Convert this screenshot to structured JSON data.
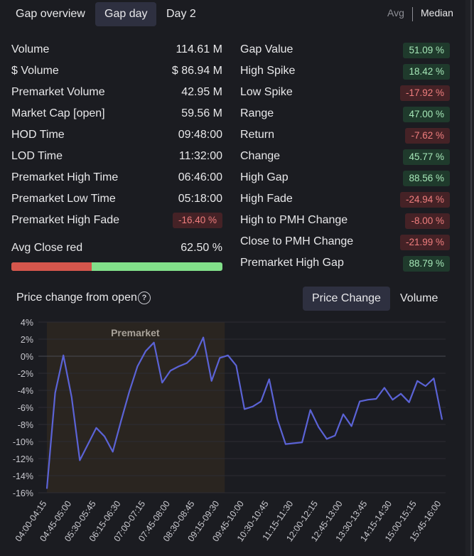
{
  "tabs": [
    "Gap overview",
    "Gap day",
    "Day 2"
  ],
  "active_tab": "Gap day",
  "toggle": {
    "avg": "Avg",
    "median": "Median"
  },
  "left_stats": [
    {
      "label": "Volume",
      "value": "114.61 M"
    },
    {
      "label": "$ Volume",
      "value": "$ 86.94 M"
    },
    {
      "label": "Premarket Volume",
      "value": "42.95 M"
    },
    {
      "label": "Market Cap [open]",
      "value": "59.56 M"
    },
    {
      "label": "HOD Time",
      "value": "09:48:00"
    },
    {
      "label": "LOD Time",
      "value": "11:32:00"
    },
    {
      "label": "Premarket High Time",
      "value": "06:46:00"
    },
    {
      "label": "Premarket Low Time",
      "value": "05:18:00"
    },
    {
      "label": "Premarket High Fade",
      "value": "-16.40 %",
      "badge": "neg"
    }
  ],
  "avg_close_red": {
    "label": "Avg Close red",
    "value": "62.50 %",
    "fraction": 0.625
  },
  "right_stats": [
    {
      "label": "Gap Value",
      "value": "51.09 %",
      "badge": "pos"
    },
    {
      "label": "High Spike",
      "value": "18.42 %",
      "badge": "pos"
    },
    {
      "label": "Low Spike",
      "value": "-17.92 %",
      "badge": "neg"
    },
    {
      "label": "Range",
      "value": "47.00 %",
      "badge": "pos"
    },
    {
      "label": "Return",
      "value": "-7.62 %",
      "badge": "neg"
    },
    {
      "label": "Change",
      "value": "45.77 %",
      "badge": "pos"
    },
    {
      "label": "High Gap",
      "value": "88.56 %",
      "badge": "pos"
    },
    {
      "label": "High Fade",
      "value": "-24.94 %",
      "badge": "neg"
    },
    {
      "label": "High to PMH Change",
      "value": "-8.00 %",
      "badge": "neg"
    },
    {
      "label": "Close to PMH Change",
      "value": "-21.99 %",
      "badge": "neg"
    },
    {
      "label": "Premarket High Gap",
      "value": "88.79 %",
      "badge": "pos"
    }
  ],
  "chart_section": {
    "title": "Price change from open",
    "help_icon": "?",
    "buttons": [
      "Price Change",
      "Volume"
    ],
    "active_button": "Price Change"
  },
  "colors": {
    "line": "#5b63d6",
    "premarket_shade": "#2a2520",
    "pos": "#a6e8b8",
    "neg": "#f07e7e"
  },
  "chart_data": {
    "type": "line",
    "title": "Price change from open",
    "ylim": [
      -16,
      4
    ],
    "yticks": [
      4,
      2,
      0,
      -2,
      -4,
      -6,
      -8,
      -10,
      -12,
      -14,
      -16
    ],
    "ytick_labels": [
      "4%",
      "2%",
      "0%",
      "-2%",
      "-4%",
      "-6%",
      "-8%",
      "-10%",
      "-12%",
      "-14%",
      "-16%"
    ],
    "xtick_labels": [
      "04:00-04:15",
      "04:45-05:00",
      "05:30-05:45",
      "06:15-06:30",
      "07:00-07:15",
      "07:45-08:00",
      "08:30-08:45",
      "09:15-09:30",
      "09:45-10:00",
      "10:30-10:45",
      "11:15-11:30",
      "12:00-12:15",
      "12:45-13:00",
      "13:30-13:45",
      "14:15-14:30",
      "15:00-15:15",
      "15:45-16:00"
    ],
    "premarket_label": "Premarket",
    "premarket_range": [
      0,
      21.6
    ],
    "series": [
      {
        "name": "Price change",
        "values": [
          -15.5,
          -4.3,
          0.1,
          -4.8,
          -12.2,
          -10.3,
          -8.4,
          -9.4,
          -11.2,
          -7.6,
          -4.2,
          -1.2,
          0.6,
          1.6,
          -3.1,
          -1.7,
          -1.2,
          -0.8,
          0.1,
          2.2,
          -2.9,
          -0.2,
          0.1,
          -1.1,
          -6.2,
          -5.9,
          -5.3,
          -2.7,
          -7.4,
          -10.3,
          -10.2,
          -10.1,
          -6.3,
          -8.3,
          -9.7,
          -9.3,
          -6.8,
          -8.2,
          -5.3,
          -5.1,
          -5.0,
          -3.7,
          -5.1,
          -4.4,
          -5.4,
          -2.9,
          -3.5,
          -2.6,
          -7.4
        ]
      }
    ]
  }
}
